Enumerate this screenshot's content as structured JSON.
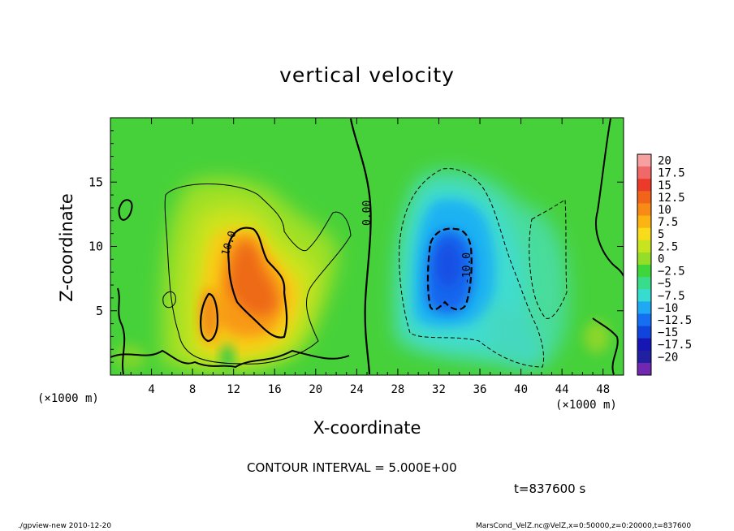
{
  "chart_data": {
    "type": "heatmap",
    "title": "vertical velocity",
    "xlabel": "X-coordinate",
    "ylabel": "Z-coordinate",
    "x_unit": "(×1000 m)",
    "x_unit_right": "(×1000 m)",
    "xlim": [
      0,
      50
    ],
    "ylim": [
      0,
      20
    ],
    "x_ticks": [
      4,
      8,
      12,
      16,
      20,
      24,
      28,
      32,
      36,
      40,
      44,
      48
    ],
    "y_ticks": [
      5,
      10,
      15
    ],
    "colorbar": {
      "levels": [
        "20",
        "17.5",
        "15",
        "12.5",
        "10",
        "7.5",
        "5",
        "2.5",
        "0",
        "−2.5",
        "−5",
        "−7.5",
        "−10",
        "−12.5",
        "−15",
        "−17.5",
        "−20"
      ],
      "colors": [
        "#f6a0a0",
        "#f06868",
        "#ec3a2a",
        "#f2641a",
        "#f88a16",
        "#fcb412",
        "#f8dc1c",
        "#c8e41e",
        "#94de2a",
        "#3ed63a",
        "#38dc8a",
        "#36dcd0",
        "#1fa9f5",
        "#1470f0",
        "#1144dc",
        "#1616b4",
        "#2020a0",
        "#7028b0"
      ]
    },
    "contour_labels": [
      "10.0",
      "0.00",
      "-10.0"
    ],
    "contour_interval": "CONTOUR INTERVAL = 5.000E+00",
    "time": "t=837600 s"
  },
  "footer": {
    "left": "./gpview-new  2010-12-20",
    "right": "MarsCond_VelZ.nc@VelZ,x=0:50000,z=0:20000,t=837600"
  }
}
